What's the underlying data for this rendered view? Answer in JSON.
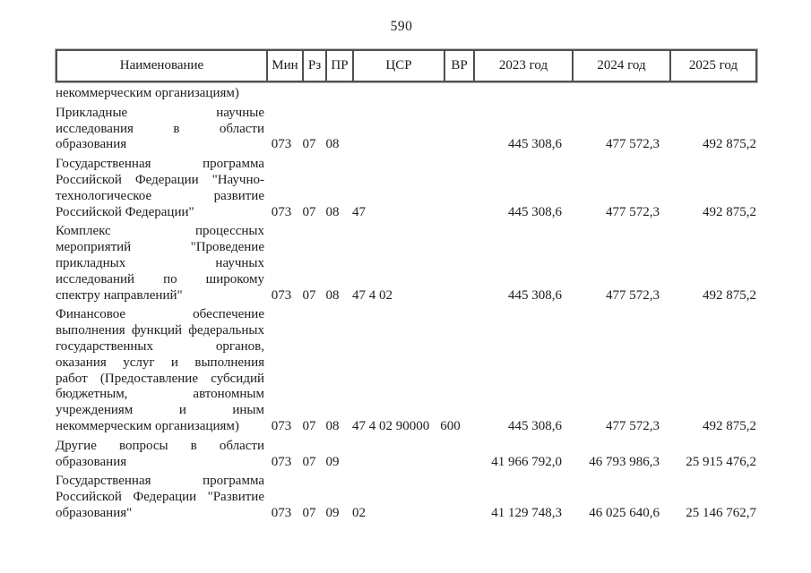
{
  "page": {
    "number": "590"
  },
  "table": {
    "headers": {
      "name": "Наименование",
      "min": "Мин",
      "rz": "Рз",
      "pr": "ПР",
      "csr": "ЦСР",
      "vr": "ВР",
      "y2023": "2023 год",
      "y2024": "2024 год",
      "y2025": "2025 год"
    },
    "rows": [
      {
        "name_lines": [
          "некоммерческим организациям)"
        ],
        "min": "",
        "rz": "",
        "pr": "",
        "csr": "",
        "vr": "",
        "y2023": "",
        "y2024": "",
        "y2025": ""
      },
      {
        "name_lines": [
          "Прикладные научные",
          "исследования в области",
          "образования"
        ],
        "min": "073",
        "rz": "07",
        "pr": "08",
        "csr": "",
        "vr": "",
        "y2023": "445 308,6",
        "y2024": "477 572,3",
        "y2025": "492 875,2"
      },
      {
        "name_lines": [
          "Государственная программа",
          "Российской Федерации \"Научно-",
          "технологическое развитие",
          "Российской Федерации\""
        ],
        "min": "073",
        "rz": "07",
        "pr": "08",
        "csr": "47",
        "vr": "",
        "y2023": "445 308,6",
        "y2024": "477 572,3",
        "y2025": "492 875,2"
      },
      {
        "name_lines": [
          "Комплекс процессных",
          "мероприятий \"Проведение",
          "прикладных научных",
          "исследований по широкому",
          "спектру направлений\""
        ],
        "min": "073",
        "rz": "07",
        "pr": "08",
        "csr": "47 4 02",
        "vr": "",
        "y2023": "445 308,6",
        "y2024": "477 572,3",
        "y2025": "492 875,2"
      },
      {
        "name_lines": [
          "Финансовое обеспечение",
          "выполнения функций федеральных",
          "государственных органов,",
          "оказания услуг и выполнения",
          "работ (Предоставление субсидий",
          "бюджетным, автономным",
          "учреждениям и иным",
          "некоммерческим организациям)"
        ],
        "min": "073",
        "rz": "07",
        "pr": "08",
        "csr": "47 4 02 90000",
        "vr": "600",
        "y2023": "445 308,6",
        "y2024": "477 572,3",
        "y2025": "492 875,2"
      },
      {
        "name_lines": [
          "Другие вопросы в области",
          "образования"
        ],
        "min": "073",
        "rz": "07",
        "pr": "09",
        "csr": "",
        "vr": "",
        "y2023": "41 966 792,0",
        "y2024": "46 793 986,3",
        "y2025": "25 915 476,2"
      },
      {
        "name_lines": [
          "Государственная программа",
          "Российской Федерации \"Развитие",
          "образования\""
        ],
        "min": "073",
        "rz": "07",
        "pr": "09",
        "csr": "02",
        "vr": "",
        "y2023": "41 129 748,3",
        "y2024": "46 025 640,6",
        "y2025": "25 146 762,7"
      }
    ]
  }
}
